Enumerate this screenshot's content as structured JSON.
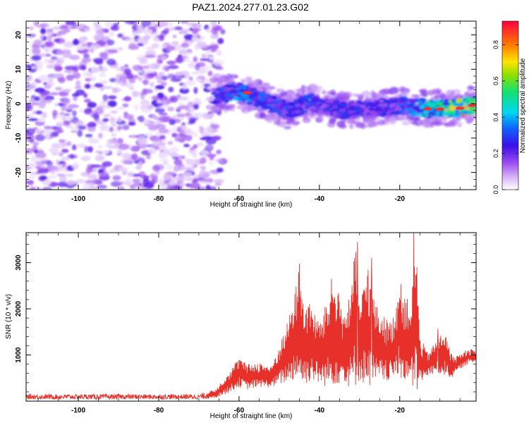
{
  "title": "PAZ1.2024.277.01.23.G02",
  "colors": {
    "snr_line": "#e8302a",
    "axis": "#000000",
    "background": "#ffffff"
  },
  "chart_data": [
    {
      "type": "heatmap",
      "xlabel": "Height of straight line (km)",
      "ylabel": "Frequency (Hz)",
      "xlim": [
        -113,
        -1
      ],
      "ylim": [
        -25,
        24
      ],
      "xticks": [
        -100,
        -80,
        -60,
        -40,
        -20
      ],
      "yticks": [
        -20,
        -10,
        0,
        10,
        20
      ],
      "xtick_labels": [
        "-100",
        "-80",
        "-60",
        "-40",
        "-20"
      ],
      "ytick_labels": [
        "-20",
        "-10",
        "0",
        "10",
        "20"
      ],
      "colorbar": {
        "label": "Normalized spectral amplitude",
        "range": [
          0,
          0.93
        ],
        "ticks": [
          0.0,
          0.2,
          0.4,
          0.6,
          0.8
        ],
        "tick_labels": [
          "0.0",
          "0.2",
          "0.4",
          "0.6",
          "0.8"
        ],
        "colormap": "rainbow (white-violet-blue-cyan-green-yellow-red)"
      },
      "ridge": {
        "description_points": [
          {
            "x": -66,
            "y": 2.5,
            "amp": 0.35
          },
          {
            "x": -60,
            "y": 3.5,
            "amp": 0.45
          },
          {
            "x": -55,
            "y": 1.5,
            "amp": 0.4
          },
          {
            "x": -48,
            "y": -2,
            "amp": 0.35
          },
          {
            "x": -42,
            "y": 0.5,
            "amp": 0.35
          },
          {
            "x": -35,
            "y": -2,
            "amp": 0.35
          },
          {
            "x": -28,
            "y": -1.5,
            "amp": 0.3
          },
          {
            "x": -20,
            "y": -0.5,
            "amp": 0.35
          },
          {
            "x": -12,
            "y": -1.5,
            "amp": 0.55
          },
          {
            "x": -5,
            "y": -1.2,
            "amp": 0.9
          },
          {
            "x": -1,
            "y": 0,
            "amp": 0.85
          }
        ]
      },
      "noise_region_x": [
        -113,
        -66
      ]
    },
    {
      "type": "line",
      "xlabel": "Height of straight line (km)",
      "ylabel": "SNR (10 * v/v)",
      "xlim": [
        -113,
        -1
      ],
      "ylim": [
        0,
        3650
      ],
      "xticks": [
        -100,
        -80,
        -60,
        -40,
        -20
      ],
      "yticks": [
        1000,
        2000,
        3000
      ],
      "xtick_labels": [
        "-100",
        "-80",
        "-60",
        "-40",
        "-20"
      ],
      "ytick_labels": [
        "1000",
        "2000",
        "3000"
      ],
      "envelope": {
        "x": [
          -113,
          -70,
          -66,
          -62,
          -60,
          -58,
          -55,
          -52,
          -50,
          -48,
          -46,
          -45,
          -44,
          -42,
          -40,
          -38,
          -36,
          -34,
          -32,
          -31,
          -30,
          -28,
          -26,
          -24,
          -22,
          -20,
          -18,
          -17,
          -16,
          -15,
          -13,
          -11,
          -9,
          -7,
          -5,
          -3,
          -1
        ],
        "min": [
          40,
          40,
          60,
          200,
          300,
          250,
          300,
          300,
          350,
          400,
          450,
          400,
          300,
          450,
          350,
          300,
          350,
          400,
          250,
          300,
          450,
          300,
          350,
          400,
          450,
          500,
          350,
          250,
          100,
          350,
          550,
          600,
          550,
          500,
          700,
          800,
          850
        ],
        "max": [
          150,
          150,
          250,
          700,
          950,
          800,
          850,
          750,
          1200,
          1700,
          2400,
          2950,
          2200,
          2100,
          1700,
          2200,
          2650,
          1900,
          2400,
          3450,
          2000,
          3050,
          2100,
          1850,
          1700,
          2600,
          2200,
          2300,
          3650,
          1400,
          1050,
          1300,
          1550,
          1000,
          1000,
          1150,
          1100
        ]
      },
      "peaks": [
        {
          "x": -45,
          "y": 2980
        },
        {
          "x": -37,
          "y": 2650
        },
        {
          "x": -30.5,
          "y": 3450
        },
        {
          "x": -27,
          "y": 3100
        },
        {
          "x": -16.5,
          "y": 3650
        },
        {
          "x": -10.5,
          "y": 1570
        }
      ]
    }
  ]
}
